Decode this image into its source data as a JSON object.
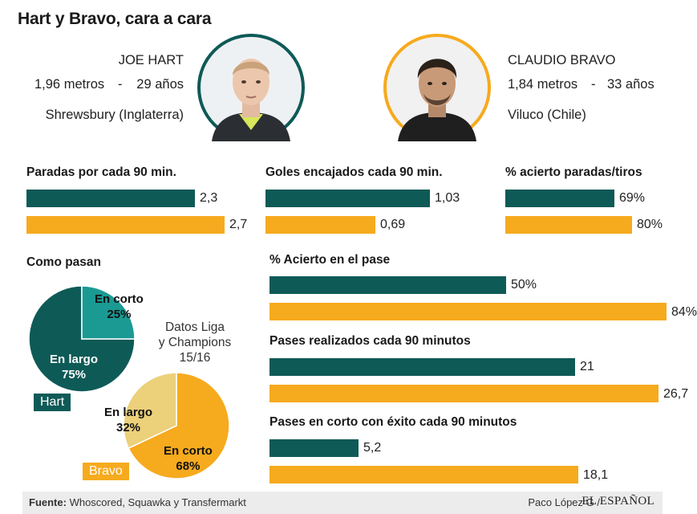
{
  "title": "Hart y Bravo, cara a cara",
  "players": {
    "hart": {
      "name": "JOE HART",
      "height": "1,96 metros",
      "sep": "-",
      "age": "29 años",
      "birthplace": "Shrewsbury (Inglaterra)",
      "ring_color": "#0e5a57"
    },
    "bravo": {
      "name": "CLAUDIO BRAVO",
      "height": "1,84 metros",
      "sep": "-",
      "age": "33 años",
      "birthplace": "Viluco (Chile)",
      "ring_color": "#f6aa1e"
    }
  },
  "colors": {
    "hart": "#0e5a57",
    "bravo": "#f6aa1e",
    "hart_short": "#1a9a93",
    "bravo_long": "#ecd07a"
  },
  "chart_data": [
    {
      "type": "bar",
      "title": "Paradas por cada 90 min.",
      "series": [
        {
          "name": "Hart",
          "value": 2.3,
          "label": "2,3"
        },
        {
          "name": "Bravo",
          "value": 2.7,
          "label": "2,7"
        }
      ],
      "xlim": [
        0,
        3.0
      ]
    },
    {
      "type": "bar",
      "title": "Goles encajados cada 90 min.",
      "series": [
        {
          "name": "Hart",
          "value": 1.03,
          "label": "1,03"
        },
        {
          "name": "Bravo",
          "value": 0.69,
          "label": "0,69"
        }
      ],
      "xlim": [
        0,
        1.35
      ]
    },
    {
      "type": "bar",
      "title": "% acierto paradas/tiros",
      "series": [
        {
          "name": "Hart",
          "value": 69,
          "label": "69%"
        },
        {
          "name": "Bravo",
          "value": 80,
          "label": "80%"
        }
      ],
      "xlim": [
        0,
        110
      ]
    },
    {
      "type": "bar",
      "title": "% Acierto en el pase",
      "series": [
        {
          "name": "Hart",
          "value": 50,
          "label": "50%"
        },
        {
          "name": "Bravo",
          "value": 84,
          "label": "84%"
        }
      ],
      "xlim": [
        0,
        121
      ]
    },
    {
      "type": "bar",
      "title": "Pases realizados cada 90 minutos",
      "series": [
        {
          "name": "Hart",
          "value": 21,
          "label": "21"
        },
        {
          "name": "Bravo",
          "value": 26.7,
          "label": "26,7"
        }
      ],
      "xlim": [
        0,
        30.5
      ]
    },
    {
      "type": "bar",
      "title": "Pases en corto con éxito cada 90 minutos",
      "series": [
        {
          "name": "Hart",
          "value": 5.2,
          "label": "5,2"
        },
        {
          "name": "Bravo",
          "value": 18.1,
          "label": "18,1"
        }
      ],
      "xlim": [
        0,
        23.6
      ]
    },
    {
      "type": "pie",
      "title": "Como pasan",
      "player": "Hart",
      "slices": [
        {
          "name": "En corto",
          "value": 25,
          "label": "25%"
        },
        {
          "name": "En largo",
          "value": 75,
          "label": "75%"
        }
      ]
    },
    {
      "type": "pie",
      "title": "",
      "player": "Bravo",
      "slices": [
        {
          "name": "En corto",
          "value": 68,
          "label": "68%"
        },
        {
          "name": "En largo",
          "value": 32,
          "label": "32%"
        }
      ]
    }
  ],
  "note": {
    "line1": "Datos Liga",
    "line2": "y Champions",
    "line3": "15/16"
  },
  "footer": {
    "source_label": "Fuente:",
    "source_text": " Whoscored, Squawka y Transfermarkt",
    "author": "Paco López G /",
    "logo": "EL ESPAÑOL"
  }
}
